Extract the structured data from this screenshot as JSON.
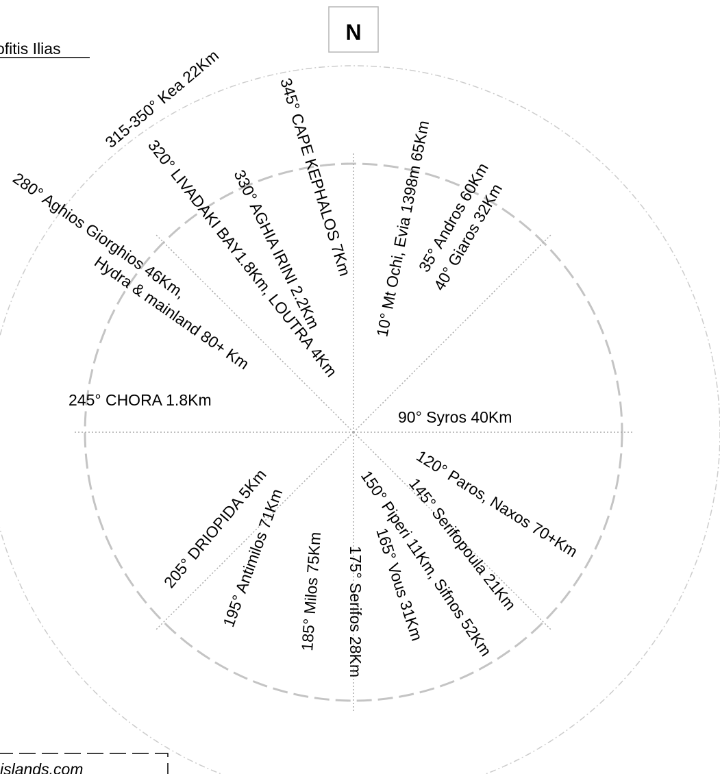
{
  "title": "ofitis Ilias",
  "north_label": "N",
  "credit": "islands.com",
  "colors": {
    "outer_circle": "#cccccc",
    "inner_circle": "#c4c4c4",
    "rays": "#aaaaaa",
    "text": "#000000"
  },
  "bearings": [
    {
      "bearing": 0,
      "label": ""
    },
    {
      "bearing": 45,
      "label": ""
    },
    {
      "bearing": 90,
      "label": ""
    },
    {
      "bearing": 135,
      "label": ""
    },
    {
      "bearing": 180,
      "label": ""
    },
    {
      "bearing": 225,
      "label": ""
    },
    {
      "bearing": 270,
      "label": ""
    },
    {
      "bearing": 315,
      "label": ""
    }
  ],
  "labels": [
    {
      "text": "315-350° Kea 22Km"
    },
    {
      "text": "345° CAPE KEPHALOS 7Km"
    },
    {
      "text": "10° Mt Ochi, Evia 1398m 65Km"
    },
    {
      "text": "35° Andros 60Km"
    },
    {
      "text": "40° Giaros 32Km"
    },
    {
      "text": "280° Aghios Giorghios  46Km,"
    },
    {
      "text": "Hydra & mainland 80+ Km"
    },
    {
      "text": "320° LIVADAKI BAY1.8Km, LOUTRA 4Km"
    },
    {
      "text": "330° AGHIA IRINI 2.2Km"
    },
    {
      "text": "245° CHORA 1.8Km"
    },
    {
      "text": "90° Syros 40Km"
    },
    {
      "text": "120° Paros, Naxos 70+Km"
    },
    {
      "text": "145° Serifopoula 21Km"
    },
    {
      "text": "150° Piperi  11Km, Sifnos 52Km"
    },
    {
      "text": "165° Vous 31Km"
    },
    {
      "text": "175° Serifos 28Km"
    },
    {
      "text": "185° Milos 75Km"
    },
    {
      "text": "195° Antimilos 71Km"
    },
    {
      "text": "205° DRIOPIDA 5Km"
    }
  ]
}
